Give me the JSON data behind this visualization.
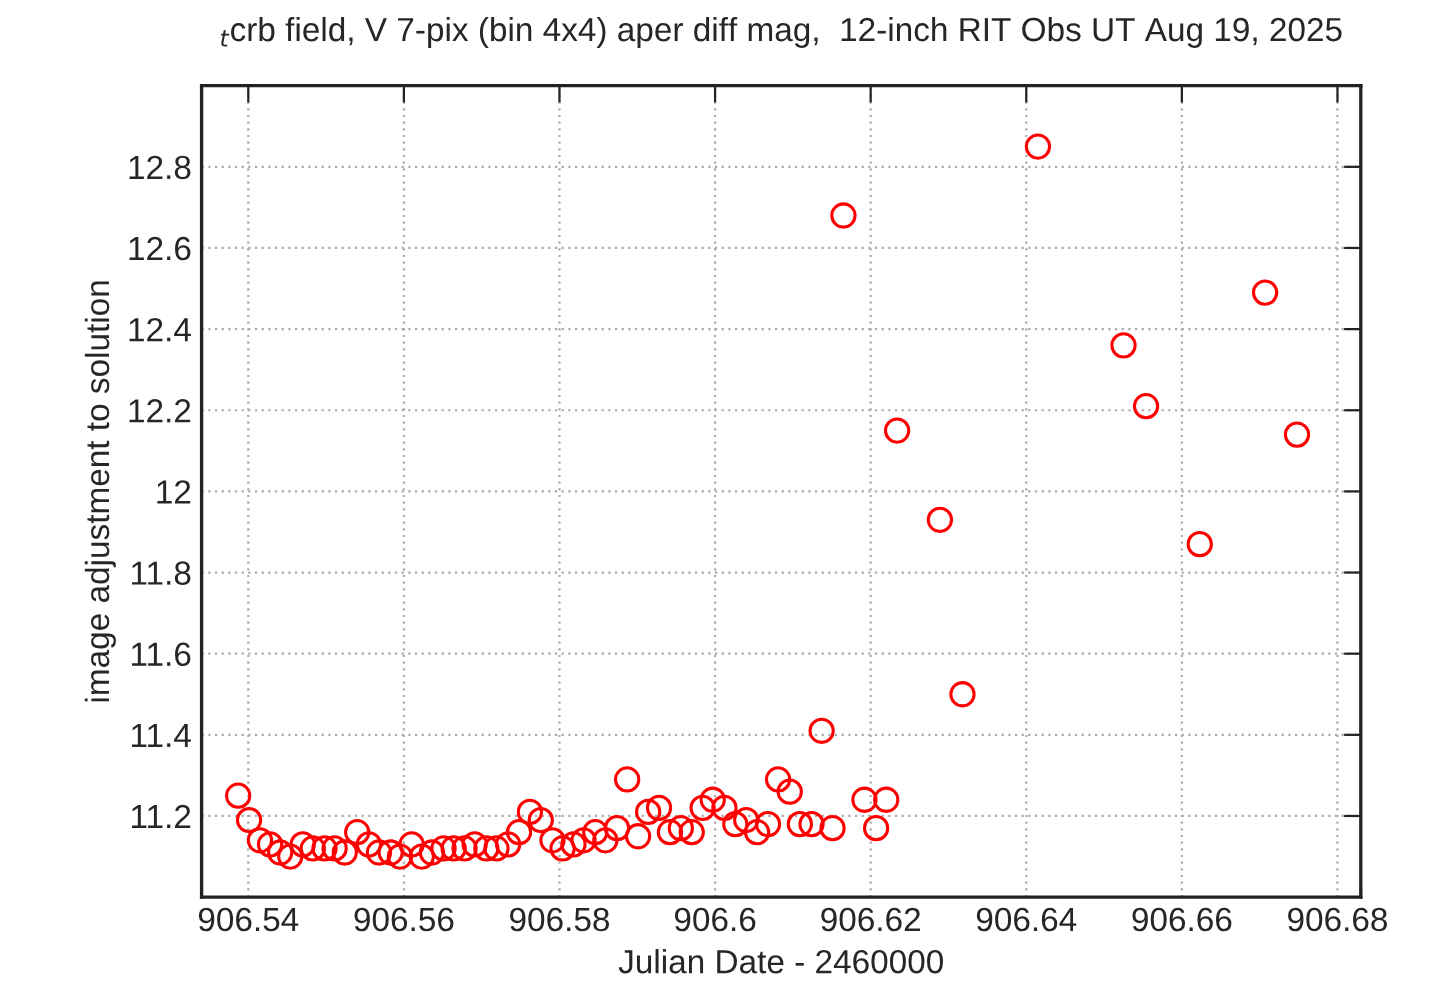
{
  "chart_data": {
    "type": "scatter",
    "title": "$_{t}$crb field, V 7-pix (bin 4x4) aper diff mag,  12-inch RIT Obs UT Aug 19, 2025",
    "xlabel": "Julian Date - 2460000",
    "ylabel": "image adjustment to solution",
    "series": [
      {
        "color": "#ff0000",
        "x": [
          906.5387,
          906.5401,
          906.5415,
          906.5428,
          906.5441,
          906.5454,
          906.547,
          906.5483,
          906.5498,
          906.5511,
          906.5524,
          906.554,
          906.5555,
          906.5568,
          906.5583,
          906.5595,
          906.561,
          906.5623,
          906.5636,
          906.5651,
          906.5664,
          906.5678,
          906.5691,
          906.5706,
          906.5719,
          906.5734,
          906.5748,
          906.5762,
          906.5776,
          906.5791,
          906.5804,
          906.5818,
          906.5831,
          906.5846,
          906.5859,
          906.5874,
          906.5887,
          906.5901,
          906.5914,
          906.5928,
          906.5942,
          906.5956,
          906.597,
          906.5984,
          906.5997,
          906.6012,
          906.6026,
          906.604,
          906.6054,
          906.6068,
          906.6081,
          906.6096,
          906.6109,
          906.6124,
          906.6137,
          906.6151,
          906.6165,
          906.6192,
          906.6207,
          906.622,
          906.6234,
          906.6289,
          906.6318,
          906.6415,
          906.6525,
          906.6554,
          906.6623,
          906.6707,
          906.6748
        ],
        "values": [
          11.25,
          11.19,
          11.14,
          11.13,
          11.11,
          11.1,
          11.13,
          11.12,
          11.12,
          11.12,
          11.11,
          11.16,
          11.13,
          11.11,
          11.11,
          11.1,
          11.13,
          11.1,
          11.11,
          11.12,
          11.12,
          11.12,
          11.13,
          11.12,
          11.12,
          11.13,
          11.16,
          11.21,
          11.19,
          11.14,
          11.12,
          11.13,
          11.14,
          11.16,
          11.14,
          11.17,
          11.29,
          11.15,
          11.21,
          11.22,
          11.16,
          11.17,
          11.16,
          11.22,
          11.24,
          11.22,
          11.18,
          11.19,
          11.16,
          11.18,
          11.29,
          11.26,
          11.18,
          11.18,
          11.41,
          11.17,
          12.68,
          11.24,
          11.17,
          11.24,
          12.15,
          11.93,
          11.5,
          12.85,
          12.36,
          12.21,
          11.87,
          12.49,
          12.14
        ]
      }
    ],
    "marker": "circle",
    "grid": true,
    "xlim": [
      906.534,
      906.683
    ],
    "xticks": [
      906.54,
      906.56,
      906.58,
      906.6,
      906.62,
      906.64,
      906.66,
      906.68
    ],
    "ylim": [
      11,
      13
    ],
    "yticks": [
      11.2,
      11.4,
      11.6,
      11.8,
      12,
      12.2,
      12.4,
      12.6,
      12.8
    ]
  }
}
